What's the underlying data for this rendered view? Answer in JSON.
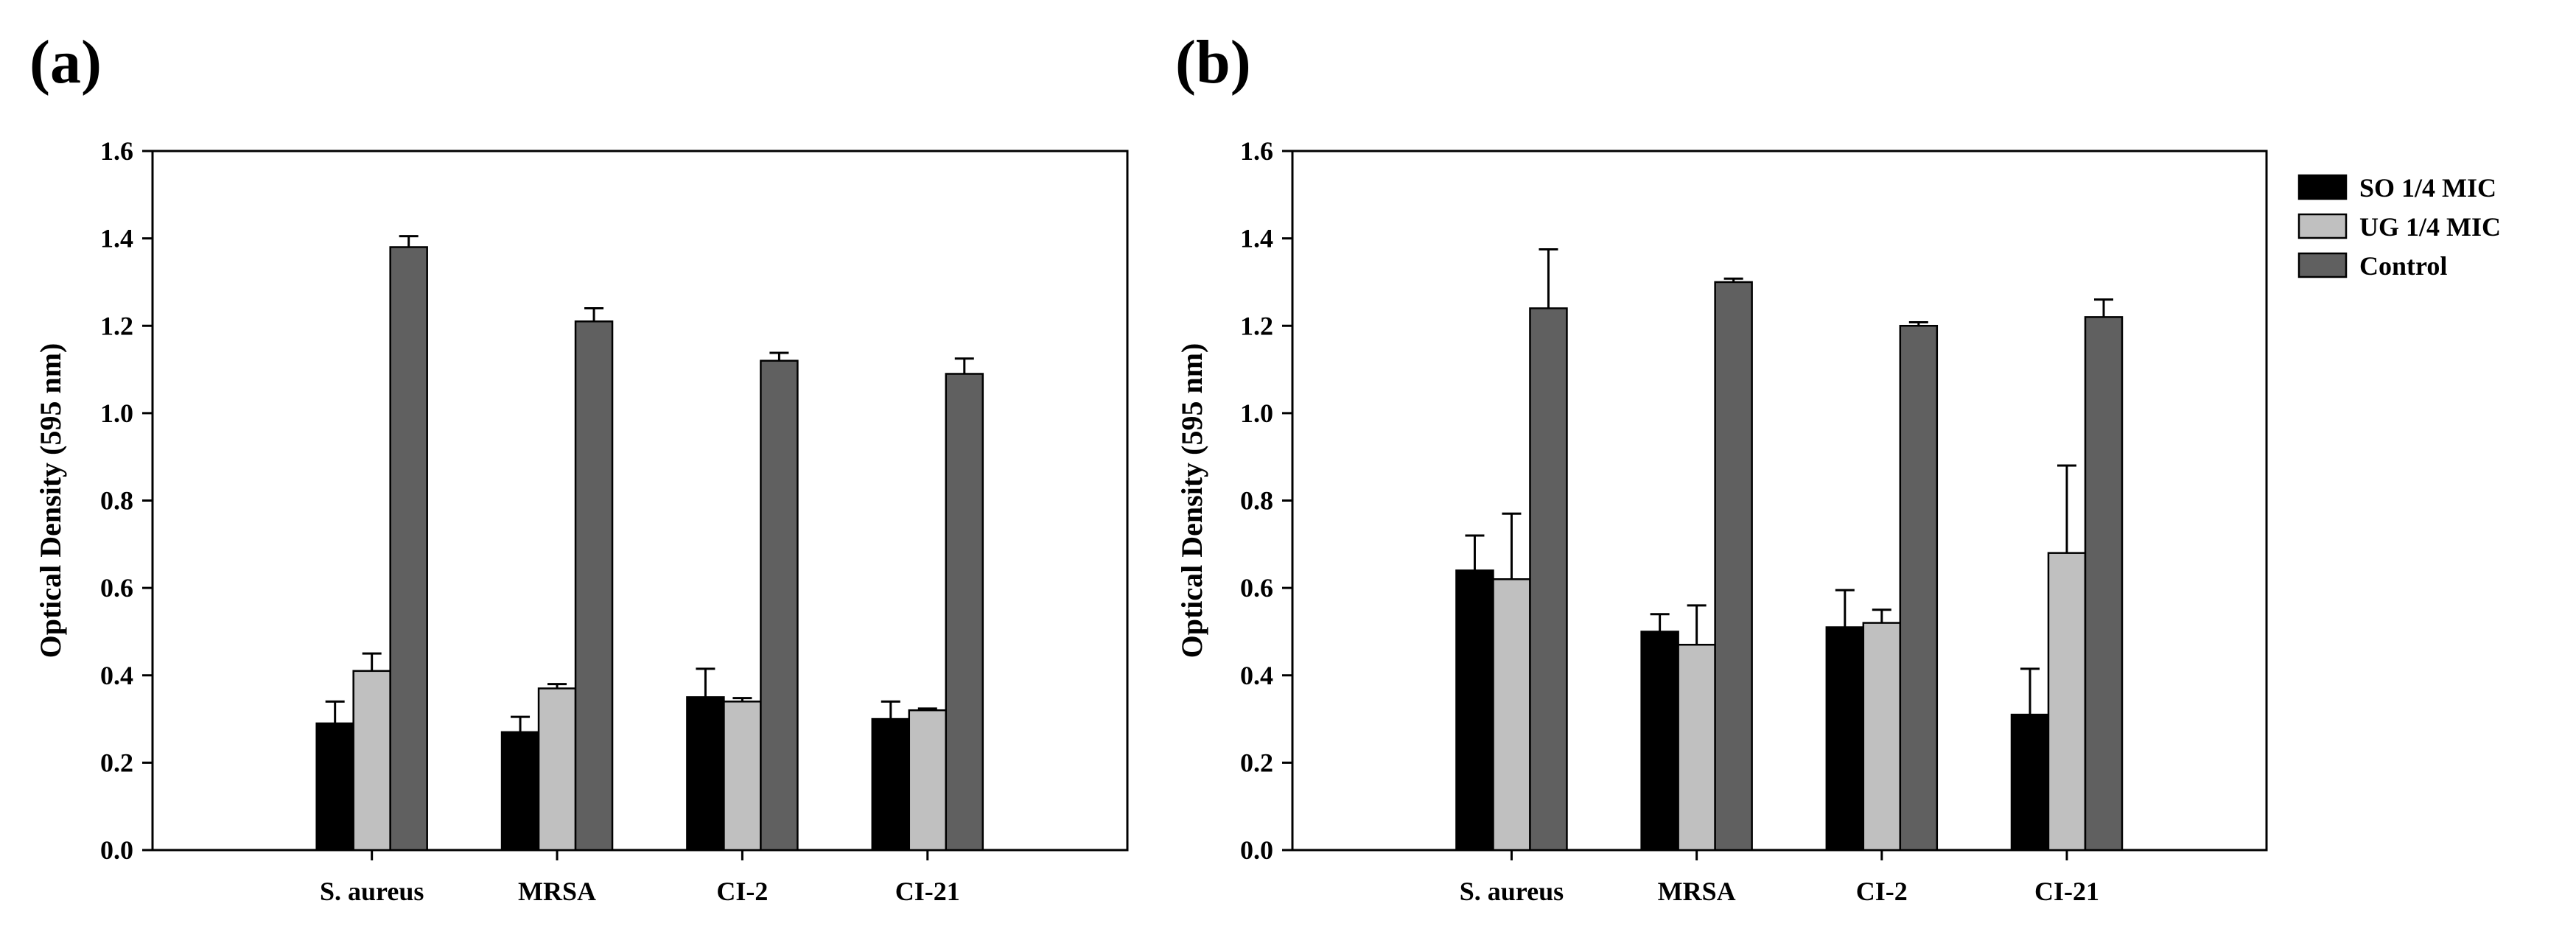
{
  "chart_data": [
    {
      "type": "bar",
      "panel_label": "(a)",
      "ylabel": "Optical Density (595 nm)",
      "ylim": [
        0,
        1.6
      ],
      "yticks": [
        "0.0",
        "0.2",
        "0.4",
        "0.6",
        "0.8",
        "1.0",
        "1.2",
        "1.4",
        "1.6"
      ],
      "categories": [
        "S. aureus",
        "MRSA",
        "CI-2",
        "CI-21"
      ],
      "series": [
        {
          "name": "SO 1/4 MIC",
          "color": "#000000",
          "values": [
            0.29,
            0.27,
            0.35,
            0.3
          ],
          "errors": [
            0.05,
            0.035,
            0.065,
            0.04
          ]
        },
        {
          "name": "UG 1/4 MIC",
          "color": "#c0c0c0",
          "values": [
            0.41,
            0.37,
            0.34,
            0.32
          ],
          "errors": [
            0.04,
            0.01,
            0.008,
            0.004
          ]
        },
        {
          "name": "Control",
          "color": "#606060",
          "values": [
            1.38,
            1.21,
            1.12,
            1.09
          ],
          "errors": [
            0.025,
            0.03,
            0.018,
            0.035
          ]
        }
      ],
      "legend": false
    },
    {
      "type": "bar",
      "panel_label": "(b)",
      "ylabel": "Optical Density (595 nm)",
      "ylim": [
        0,
        1.6
      ],
      "yticks": [
        "0.0",
        "0.2",
        "0.4",
        "0.6",
        "0.8",
        "1.0",
        "1.2",
        "1.4",
        "1.6"
      ],
      "categories": [
        "S. aureus",
        "MRSA",
        "CI-2",
        "CI-21"
      ],
      "series": [
        {
          "name": "SO 1/4 MIC",
          "color": "#000000",
          "values": [
            0.64,
            0.5,
            0.51,
            0.31
          ],
          "errors": [
            0.08,
            0.04,
            0.085,
            0.105
          ]
        },
        {
          "name": "UG 1/4 MIC",
          "color": "#c0c0c0",
          "values": [
            0.62,
            0.47,
            0.52,
            0.68
          ],
          "errors": [
            0.15,
            0.09,
            0.03,
            0.2
          ]
        },
        {
          "name": "Control",
          "color": "#606060",
          "values": [
            1.24,
            1.3,
            1.2,
            1.22
          ],
          "errors": [
            0.135,
            0.008,
            0.008,
            0.04
          ]
        }
      ],
      "legend": true,
      "legend_position": "right"
    }
  ]
}
